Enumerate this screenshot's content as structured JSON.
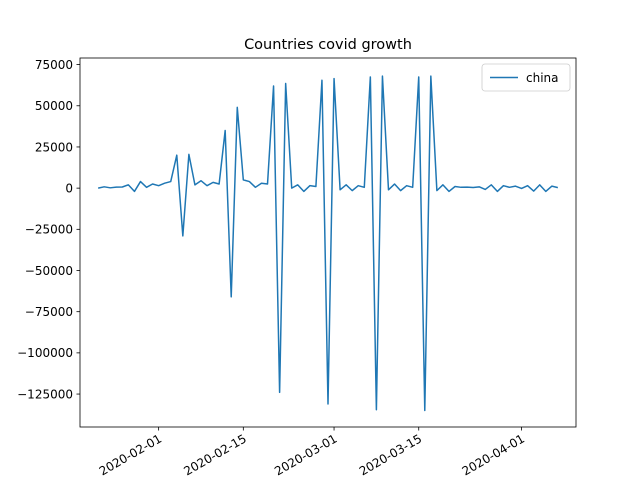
{
  "chart_data": {
    "type": "line",
    "title": "Countries covid growth",
    "xlabel": "",
    "ylabel": "",
    "grid": false,
    "legend_position": "top-right",
    "ylim": [
      -145000,
      79000
    ],
    "xlim": [
      "2020-01-19",
      "2020-04-10"
    ],
    "yticks": [
      75000,
      50000,
      25000,
      0,
      -25000,
      -50000,
      -75000,
      -100000,
      -125000
    ],
    "ytick_labels": [
      "75000",
      "50000",
      "25000",
      "0",
      "−25000",
      "−50000",
      "−75000",
      "−100000",
      "−125000"
    ],
    "xticks": [
      "2020-02-01",
      "2020-02-15",
      "2020-03-01",
      "2020-03-15",
      "2020-04-01"
    ],
    "xtick_labels": [
      "2020-02-01",
      "2020-02-15",
      "2020-03-01",
      "2020-03-15",
      "2020-04-01"
    ],
    "series": [
      {
        "name": "china",
        "color": "#1f77b4",
        "x": [
          "2020-01-22",
          "2020-01-23",
          "2020-01-24",
          "2020-01-25",
          "2020-01-26",
          "2020-01-27",
          "2020-01-28",
          "2020-01-29",
          "2020-01-30",
          "2020-01-31",
          "2020-02-01",
          "2020-02-02",
          "2020-02-03",
          "2020-02-04",
          "2020-02-05",
          "2020-02-06",
          "2020-02-07",
          "2020-02-08",
          "2020-02-09",
          "2020-02-10",
          "2020-02-11",
          "2020-02-12",
          "2020-02-13",
          "2020-02-14",
          "2020-02-15",
          "2020-02-16",
          "2020-02-17",
          "2020-02-18",
          "2020-02-19",
          "2020-02-20",
          "2020-02-21",
          "2020-02-22",
          "2020-02-23",
          "2020-02-24",
          "2020-02-25",
          "2020-02-26",
          "2020-02-27",
          "2020-02-28",
          "2020-02-29",
          "2020-03-01",
          "2020-03-02",
          "2020-03-03",
          "2020-03-04",
          "2020-03-05",
          "2020-03-06",
          "2020-03-07",
          "2020-03-08",
          "2020-03-09",
          "2020-03-10",
          "2020-03-11",
          "2020-03-12",
          "2020-03-13",
          "2020-03-14",
          "2020-03-15",
          "2020-03-16",
          "2020-03-17",
          "2020-03-18",
          "2020-03-19",
          "2020-03-20",
          "2020-03-21",
          "2020-03-22",
          "2020-03-23",
          "2020-03-24",
          "2020-03-25",
          "2020-03-26",
          "2020-03-27",
          "2020-03-28",
          "2020-03-29",
          "2020-03-30",
          "2020-03-31",
          "2020-04-01",
          "2020-04-02",
          "2020-04-03",
          "2020-04-04",
          "2020-04-05",
          "2020-04-06",
          "2020-04-07"
        ],
        "y": [
          0,
          800,
          200,
          600,
          700,
          2000,
          -2000,
          4000,
          500,
          2500,
          1500,
          3000,
          4000,
          20000,
          -29000,
          20500,
          2000,
          4500,
          1500,
          3500,
          2500,
          35000,
          -66000,
          49000,
          5000,
          4000,
          500,
          3000,
          2500,
          62000,
          -124000,
          63500,
          0,
          2000,
          -2000,
          1500,
          1000,
          65500,
          -131000,
          66500,
          -1000,
          2000,
          -1500,
          1500,
          500,
          67500,
          -134500,
          68000,
          -1000,
          2500,
          -1500,
          1500,
          500,
          67500,
          -135000,
          68000,
          -1500,
          2000,
          -2000,
          1000,
          500,
          600,
          400,
          800,
          -800,
          2000,
          -2000,
          1500,
          500,
          1200,
          -200,
          1500,
          -1800,
          2000,
          -2000,
          1200,
          300
        ]
      }
    ]
  }
}
